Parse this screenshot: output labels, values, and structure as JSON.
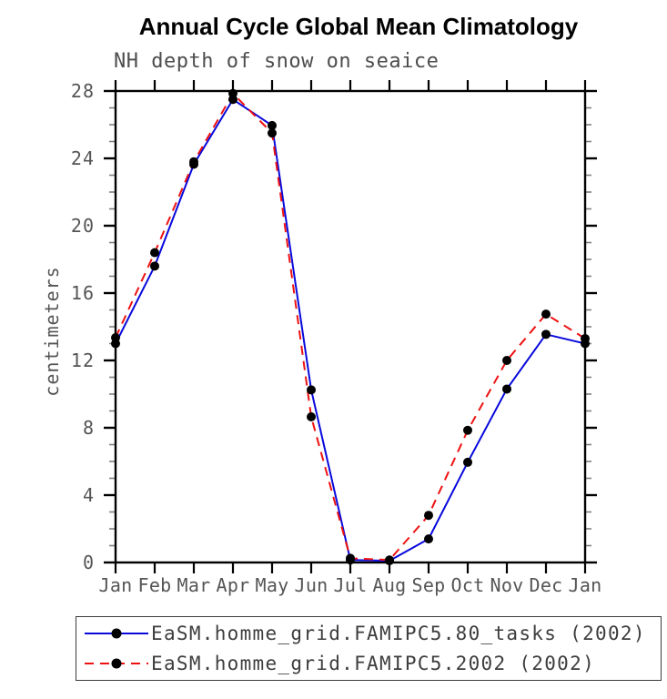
{
  "header": {
    "title": "Annual Cycle Global Mean Climatology",
    "subtitle": "NH depth of snow on seaice"
  },
  "chart_data": {
    "type": "line",
    "title": "Annual Cycle Global Mean Climatology",
    "subtitle": "NH depth of snow on seaice",
    "categories": [
      "Jan",
      "Feb",
      "Mar",
      "Apr",
      "May",
      "Jun",
      "Jul",
      "Aug",
      "Sep",
      "Oct",
      "Nov",
      "Dec",
      "Jan"
    ],
    "xlabel": "",
    "ylabel": "centimeters",
    "ylim": [
      0,
      28
    ],
    "y_major_ticks": [
      0,
      4,
      8,
      12,
      16,
      20,
      24,
      28
    ],
    "y_minor_step": 1,
    "grid": false,
    "legend_position": "bottom-left-box",
    "series": [
      {
        "name": "EaSM.homme_grid.FAMIPC5.80_tasks (2002)",
        "color": "#0808dd",
        "line_style": "solid",
        "marker": "filled-circle",
        "marker_color": "#000000",
        "values": [
          13.0,
          17.6,
          23.65,
          27.5,
          25.95,
          10.25,
          0.15,
          0.1,
          1.4,
          5.95,
          10.3,
          13.55,
          13.0
        ]
      },
      {
        "name": "EaSM.homme_grid.FAMIPC5.2002 (2002)",
        "color": "#ee1111",
        "line_style": "dashed",
        "marker": "filled-circle",
        "marker_color": "#000000",
        "values": [
          13.35,
          18.4,
          23.8,
          27.85,
          25.5,
          8.65,
          0.25,
          0.15,
          2.8,
          7.85,
          12.0,
          14.75,
          13.3
        ]
      }
    ]
  },
  "colors": {
    "axis": "#000000",
    "major_tick": "#000000",
    "minor_tick": "#808080",
    "tick_label": "#555555",
    "title": "#000000",
    "subtitle": "#4d4d4d",
    "legend_text": "#3d3d3d",
    "legend_border": "#3c3c3c",
    "marker": "#000000"
  }
}
